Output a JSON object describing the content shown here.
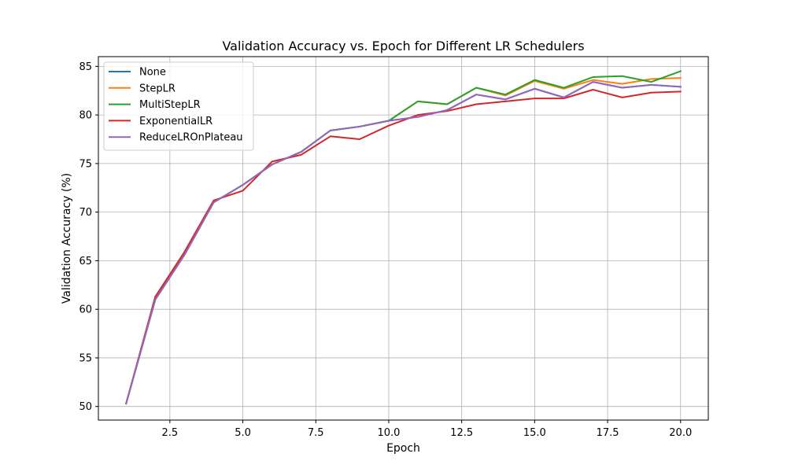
{
  "chart_data": {
    "type": "line",
    "title": "Validation Accuracy vs. Epoch for Different LR Schedulers",
    "xlabel": "Epoch",
    "ylabel": "Validation Accuracy (%)",
    "xlim": [
      0.05,
      20.95
    ],
    "ylim": [
      48.6,
      86.0
    ],
    "xticks": [
      2.5,
      5.0,
      7.5,
      10.0,
      12.5,
      15.0,
      17.5,
      20.0
    ],
    "xtick_labels": [
      "2.5",
      "5.0",
      "7.5",
      "10.0",
      "12.5",
      "15.0",
      "17.5",
      "20.0"
    ],
    "yticks": [
      50,
      55,
      60,
      65,
      70,
      75,
      80,
      85
    ],
    "ytick_labels": [
      "50",
      "55",
      "60",
      "65",
      "70",
      "75",
      "80",
      "85"
    ],
    "grid": true,
    "legend_position": "top-left",
    "x": [
      1,
      2,
      3,
      4,
      5,
      6,
      7,
      8,
      9,
      10,
      11,
      12,
      13,
      14,
      15,
      16,
      17,
      18,
      19,
      20
    ],
    "series": [
      {
        "name": "None",
        "color": "#1f77b4",
        "values": [
          50.3,
          61.0,
          65.6,
          71.0,
          72.8,
          74.9,
          76.2,
          78.4,
          78.8,
          79.4,
          79.8,
          80.5,
          82.1,
          81.6,
          82.7,
          81.8,
          83.4,
          82.8,
          83.1,
          82.9
        ]
      },
      {
        "name": "StepLR",
        "color": "#ff7f0e",
        "values": [
          50.3,
          61.0,
          65.6,
          71.0,
          72.8,
          74.9,
          76.2,
          78.4,
          78.8,
          79.4,
          81.4,
          81.1,
          82.8,
          82.0,
          83.5,
          82.7,
          83.6,
          83.2,
          83.7,
          83.8
        ]
      },
      {
        "name": "MultiStepLR",
        "color": "#2ca02c",
        "values": [
          50.3,
          61.0,
          65.6,
          71.0,
          72.8,
          74.9,
          76.2,
          78.4,
          78.8,
          79.4,
          81.4,
          81.1,
          82.8,
          82.1,
          83.6,
          82.8,
          83.9,
          84.0,
          83.4,
          84.5
        ]
      },
      {
        "name": "ExponentialLR",
        "color": "#d62728",
        "values": [
          50.3,
          61.3,
          65.9,
          71.2,
          72.2,
          75.2,
          75.9,
          77.8,
          77.5,
          78.9,
          80.0,
          80.4,
          81.1,
          81.4,
          81.7,
          81.7,
          82.6,
          81.8,
          82.3,
          82.4
        ]
      },
      {
        "name": "ReduceLROnPlateau",
        "color": "#9467bd",
        "values": [
          50.3,
          61.0,
          65.6,
          71.0,
          72.8,
          74.9,
          76.2,
          78.4,
          78.8,
          79.4,
          79.8,
          80.5,
          82.1,
          81.6,
          82.7,
          81.8,
          83.4,
          82.8,
          83.1,
          82.9
        ]
      }
    ]
  }
}
